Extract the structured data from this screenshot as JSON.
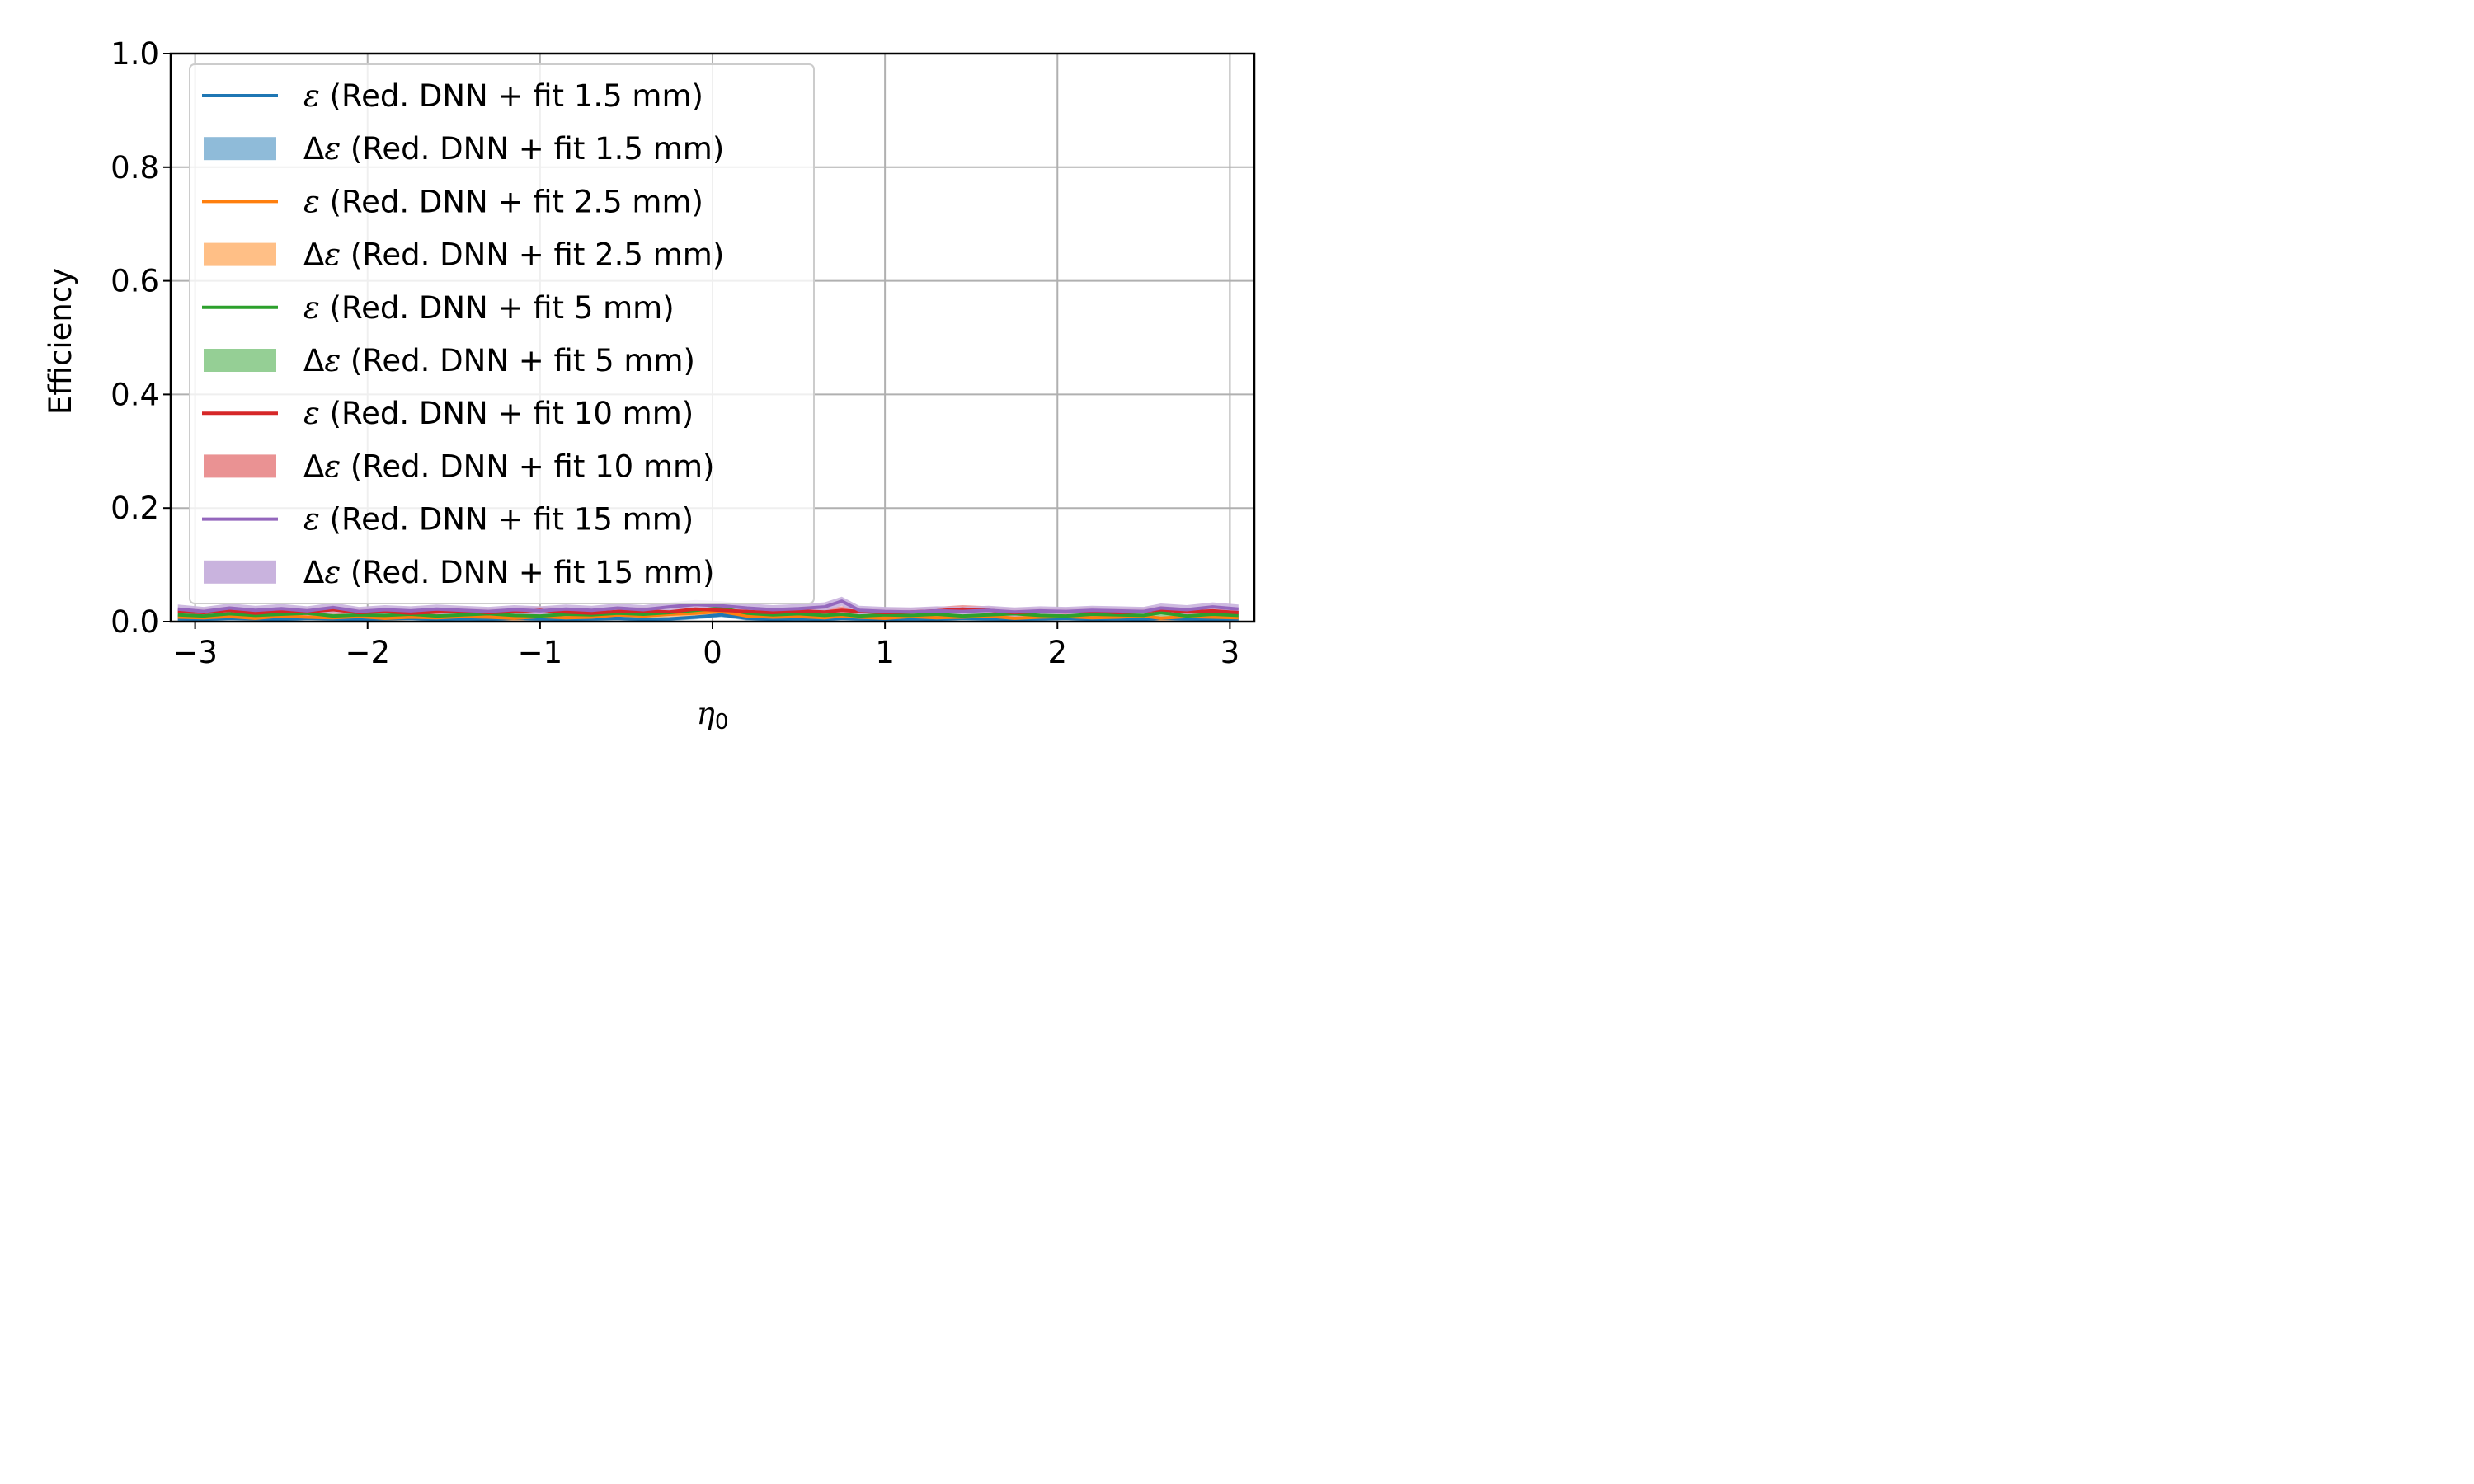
{
  "chart_data": {
    "type": "line",
    "xlabel": "η0",
    "ylabel": "Efficiency",
    "xlim": [
      -3.1416,
      3.1416
    ],
    "ylim": [
      0.0,
      1.0
    ],
    "grid": true,
    "legend_position": "upper-left",
    "x_ticks": [
      -3,
      -2,
      -1,
      0,
      1,
      2,
      3
    ],
    "x_tick_labels": [
      "−3",
      "−2",
      "−1",
      "0",
      "1",
      "2",
      "3"
    ],
    "y_ticks": [
      0.0,
      0.2,
      0.4,
      0.6,
      0.8,
      1.0
    ],
    "y_tick_labels": [
      "0.0",
      "0.2",
      "0.4",
      "0.6",
      "0.8",
      "1.0"
    ],
    "x": [
      -3.1,
      -2.95,
      -2.8,
      -2.65,
      -2.5,
      -2.35,
      -2.2,
      -2.05,
      -1.9,
      -1.75,
      -1.6,
      -1.45,
      -1.3,
      -1.15,
      -1.0,
      -0.85,
      -0.7,
      -0.55,
      -0.4,
      -0.25,
      -0.1,
      0.05,
      0.2,
      0.35,
      0.5,
      0.65,
      0.75,
      0.85,
      1.0,
      1.15,
      1.3,
      1.45,
      1.6,
      1.75,
      1.9,
      2.05,
      2.2,
      2.35,
      2.5,
      2.6,
      2.75,
      2.9,
      3.05
    ],
    "legend": [
      {
        "eps": "ε",
        "delta": "",
        "label": " (Red. DNN + fit 1.5 mm)",
        "kind": "line",
        "color": "#1f77b4"
      },
      {
        "eps": "ε",
        "delta": "Δ",
        "label": " (Red. DNN + fit 1.5 mm)",
        "kind": "band",
        "color": "#8fbbd9"
      },
      {
        "eps": "ε",
        "delta": "",
        "label": " (Red. DNN + fit 2.5 mm)",
        "kind": "line",
        "color": "#ff7f0e"
      },
      {
        "eps": "ε",
        "delta": "Δ",
        "label": " (Red. DNN + fit 2.5 mm)",
        "kind": "band",
        "color": "#ffbf86"
      },
      {
        "eps": "ε",
        "delta": "",
        "label": " (Red. DNN + fit 5 mm)",
        "kind": "line",
        "color": "#2ca02c"
      },
      {
        "eps": "ε",
        "delta": "Δ",
        "label": " (Red. DNN + fit 5 mm)",
        "kind": "band",
        "color": "#95cf95"
      },
      {
        "eps": "ε",
        "delta": "",
        "label": " (Red. DNN + fit 10 mm)",
        "kind": "line",
        "color": "#d62728"
      },
      {
        "eps": "ε",
        "delta": "Δ",
        "label": " (Red. DNN + fit 10 mm)",
        "kind": "band",
        "color": "#ea9293"
      },
      {
        "eps": "ε",
        "delta": "",
        "label": " (Red. DNN + fit 15 mm)",
        "kind": "line",
        "color": "#9467bd"
      },
      {
        "eps": "ε",
        "delta": "Δ",
        "label": " (Red. DNN + fit 15 mm)",
        "kind": "band",
        "color": "#c9b3de"
      }
    ],
    "series": [
      {
        "name": "ε (Red. DNN + fit 1.5 mm)",
        "color": "#1f77b4",
        "band_color": "#8fbbd9",
        "values": [
          0.005,
          0.004,
          0.006,
          0.005,
          0.004,
          0.006,
          0.005,
          0.004,
          0.005,
          0.006,
          0.004,
          0.005,
          0.004,
          0.006,
          0.005,
          0.004,
          0.005,
          0.006,
          0.004,
          0.005,
          0.008,
          0.012,
          0.006,
          0.004,
          0.005,
          0.004,
          0.006,
          0.005,
          0.004,
          0.005,
          0.004,
          0.006,
          0.005,
          0.004,
          0.005,
          0.006,
          0.004,
          0.005,
          0.004,
          0.006,
          0.005,
          0.004,
          0.005
        ],
        "band": 0.004
      },
      {
        "name": "ε (Red. DNN + fit 2.5 mm)",
        "color": "#ff7f0e",
        "band_color": "#ffbf86",
        "values": [
          0.008,
          0.007,
          0.009,
          0.006,
          0.01,
          0.008,
          0.007,
          0.009,
          0.006,
          0.008,
          0.007,
          0.009,
          0.008,
          0.006,
          0.009,
          0.007,
          0.008,
          0.012,
          0.01,
          0.013,
          0.015,
          0.018,
          0.01,
          0.008,
          0.009,
          0.007,
          0.01,
          0.008,
          0.006,
          0.009,
          0.007,
          0.008,
          0.01,
          0.006,
          0.008,
          0.009,
          0.007,
          0.008,
          0.01,
          0.006,
          0.009,
          0.008,
          0.007
        ],
        "band": 0.005
      },
      {
        "name": "ε (Red. DNN + fit 5 mm)",
        "color": "#2ca02c",
        "band_color": "#95cf95",
        "values": [
          0.012,
          0.01,
          0.014,
          0.011,
          0.013,
          0.015,
          0.01,
          0.012,
          0.011,
          0.013,
          0.01,
          0.012,
          0.014,
          0.011,
          0.01,
          0.013,
          0.012,
          0.015,
          0.013,
          0.016,
          0.02,
          0.024,
          0.015,
          0.012,
          0.014,
          0.011,
          0.013,
          0.01,
          0.012,
          0.011,
          0.013,
          0.01,
          0.012,
          0.014,
          0.011,
          0.01,
          0.013,
          0.012,
          0.011,
          0.016,
          0.01,
          0.013,
          0.011
        ],
        "band": 0.006
      },
      {
        "name": "ε (Red. DNN + fit 10 mm)",
        "color": "#d62728",
        "band_color": "#ea9293",
        "values": [
          0.018,
          0.016,
          0.02,
          0.015,
          0.019,
          0.017,
          0.021,
          0.016,
          0.018,
          0.015,
          0.017,
          0.019,
          0.016,
          0.018,
          0.02,
          0.017,
          0.015,
          0.018,
          0.019,
          0.017,
          0.022,
          0.02,
          0.018,
          0.016,
          0.019,
          0.017,
          0.02,
          0.018,
          0.016,
          0.017,
          0.019,
          0.022,
          0.02,
          0.016,
          0.018,
          0.017,
          0.019,
          0.016,
          0.018,
          0.021,
          0.017,
          0.019,
          0.016
        ],
        "band": 0.007
      },
      {
        "name": "ε (Red. DNN + fit 15 mm)",
        "color": "#9467bd",
        "band_color": "#c9b3de",
        "values": [
          0.022,
          0.018,
          0.024,
          0.02,
          0.023,
          0.019,
          0.025,
          0.018,
          0.021,
          0.019,
          0.022,
          0.02,
          0.018,
          0.021,
          0.019,
          0.022,
          0.02,
          0.024,
          0.021,
          0.026,
          0.03,
          0.028,
          0.024,
          0.021,
          0.023,
          0.026,
          0.036,
          0.02,
          0.018,
          0.017,
          0.019,
          0.018,
          0.02,
          0.017,
          0.019,
          0.018,
          0.02,
          0.019,
          0.018,
          0.024,
          0.021,
          0.026,
          0.022
        ],
        "band": 0.008
      }
    ]
  }
}
